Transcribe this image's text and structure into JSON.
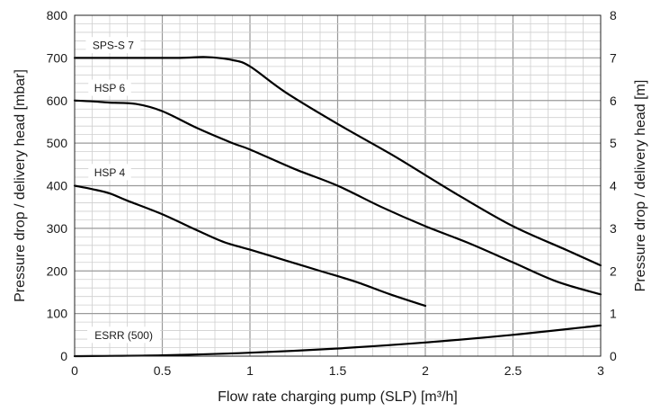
{
  "chart_data": {
    "type": "line",
    "xlabel": "Flow rate charging pump (SLP) [m³/h]",
    "ylabel": "Pressure drop / delivery head [mbar]",
    "ylabel_right": "Pressure drop / delivery head [m]",
    "xlim": [
      0,
      3
    ],
    "ylim": [
      0,
      800
    ],
    "ylim_right": [
      0,
      8
    ],
    "x_ticks": [
      "0",
      "0.5",
      "1",
      "1.5",
      "2",
      "2.5",
      "3"
    ],
    "y_ticks": [
      "0",
      "100",
      "200",
      "300",
      "400",
      "500",
      "600",
      "700",
      "800"
    ],
    "y_ticks_right": [
      "0",
      "1",
      "2",
      "3",
      "4",
      "5",
      "6",
      "7",
      "8"
    ],
    "grid": true,
    "series": [
      {
        "name": "SPS-S 7",
        "x": [
          0,
          0.3,
          0.6,
          0.75,
          0.9,
          1.0,
          1.2,
          1.5,
          1.8,
          2.0,
          2.2,
          2.5,
          2.8,
          3.0
        ],
        "y": [
          700,
          700,
          700,
          702,
          695,
          680,
          620,
          545,
          475,
          425,
          375,
          305,
          250,
          213
        ]
      },
      {
        "name": "HSP 6",
        "x": [
          0,
          0.1,
          0.2,
          0.35,
          0.5,
          0.7,
          0.9,
          1.0,
          1.25,
          1.5,
          1.75,
          2.0,
          2.25,
          2.5,
          2.75,
          3.0
        ],
        "y": [
          600,
          598,
          595,
          592,
          575,
          535,
          500,
          485,
          440,
          400,
          350,
          305,
          265,
          220,
          175,
          145
        ]
      },
      {
        "name": "HSP 4",
        "x": [
          0,
          0.1,
          0.2,
          0.3,
          0.5,
          0.7,
          0.85,
          1.0,
          1.2,
          1.4,
          1.6,
          1.8,
          2.0
        ],
        "y": [
          400,
          392,
          382,
          365,
          333,
          295,
          268,
          250,
          225,
          200,
          175,
          145,
          118
        ]
      },
      {
        "name": "ESRR (500)",
        "x": [
          0,
          0.5,
          1.0,
          1.5,
          2.0,
          2.5,
          3.0
        ],
        "y": [
          0,
          2,
          8,
          18,
          32,
          50,
          72
        ]
      }
    ],
    "series_labels": [
      {
        "text": "SPS-S 7",
        "x": 0.22,
        "y": 730
      },
      {
        "text": "HSP 6",
        "x": 0.2,
        "y": 630
      },
      {
        "text": "HSP 4",
        "x": 0.2,
        "y": 432
      },
      {
        "text": "ESRR (500)",
        "x": 0.28,
        "y": 50
      }
    ]
  }
}
